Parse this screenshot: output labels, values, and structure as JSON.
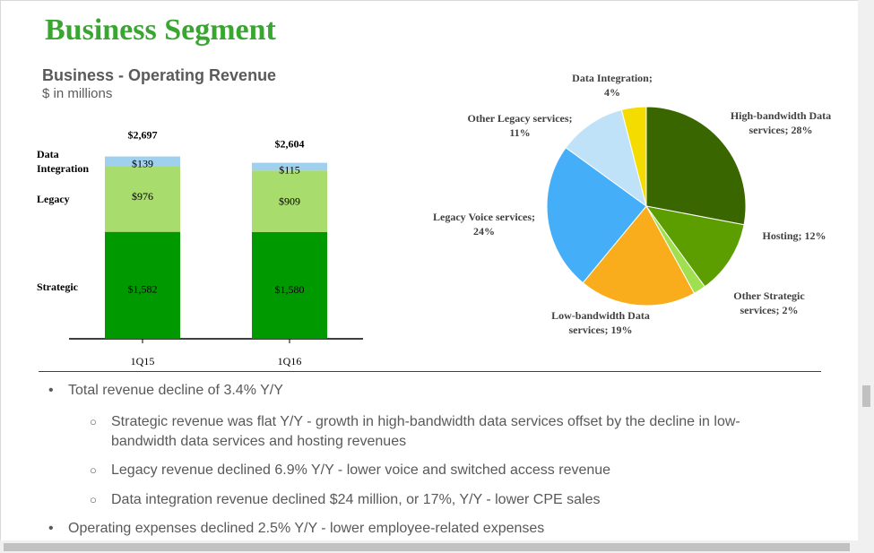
{
  "slide": {
    "title": "Business Segment",
    "chart_title": "Business - Operating Revenue",
    "chart_unit": "$ in millions"
  },
  "colors": {
    "title": "#3aa632",
    "strategic": "#009a00",
    "legacy": "#a8dc6c",
    "data_integration": "#9fd0ee"
  },
  "chart_data": [
    {
      "type": "bar",
      "stacked": true,
      "title": "Business - Operating Revenue",
      "ylabel": "$ in millions",
      "categories": [
        "1Q15",
        "1Q16"
      ],
      "totals": [
        "$2,697",
        "$2,604"
      ],
      "total_values": [
        2697,
        2604
      ],
      "series": [
        {
          "name": "Strategic",
          "values": [
            1582,
            1580
          ],
          "labels": [
            "$1,582",
            "$1,580"
          ],
          "color": "#009a00"
        },
        {
          "name": "Legacy",
          "values": [
            976,
            909
          ],
          "labels": [
            "$976",
            "$909"
          ],
          "color": "#a8dc6c"
        },
        {
          "name": "Data Integration",
          "legend_lines": [
            "Data",
            "Integration"
          ],
          "values": [
            139,
            115
          ],
          "labels": [
            "$139",
            "$115"
          ],
          "color": "#9fd0ee"
        }
      ]
    },
    {
      "type": "pie",
      "slices": [
        {
          "name": "High-bandwidth Data services",
          "value": 28,
          "label_lines": [
            "High-bandwidth Data",
            "services; 28%"
          ],
          "color": "#3a6600"
        },
        {
          "name": "Hosting",
          "value": 12,
          "label_lines": [
            "Hosting; 12%"
          ],
          "color": "#5c9e00"
        },
        {
          "name": "Other Strategic services",
          "value": 2,
          "label_lines": [
            "Other Strategic",
            "services; 2%"
          ],
          "color": "#a0df50"
        },
        {
          "name": "Low-bandwidth Data services",
          "value": 19,
          "label_lines": [
            "Low-bandwidth Data",
            "services; 19%"
          ],
          "color": "#f9ad1c"
        },
        {
          "name": "Legacy Voice services",
          "value": 24,
          "label_lines": [
            "Legacy Voice services;",
            "24%"
          ],
          "color": "#45aef9"
        },
        {
          "name": "Other Legacy services",
          "value": 11,
          "label_lines": [
            "Other Legacy services;",
            "11%"
          ],
          "color": "#c0e2f9"
        },
        {
          "name": "Data Integration",
          "value": 4,
          "label_lines": [
            "Data Integration;",
            "4%"
          ],
          "color": "#f5dc00"
        }
      ]
    }
  ],
  "bullets": {
    "b1": "Total revenue decline of 3.4% Y/Y",
    "b1_sub1": "Strategic revenue was flat Y/Y - growth in high-bandwidth data services offset by the decline in low-bandwidth data services and hosting revenues",
    "b1_sub2": "Legacy revenue declined 6.9% Y/Y - lower voice and switched access revenue",
    "b1_sub3": "Data integration revenue declined $24 million, or 17%, Y/Y - lower CPE sales",
    "b2": "Operating expenses declined 2.5% Y/Y - lower employee-related expenses"
  }
}
